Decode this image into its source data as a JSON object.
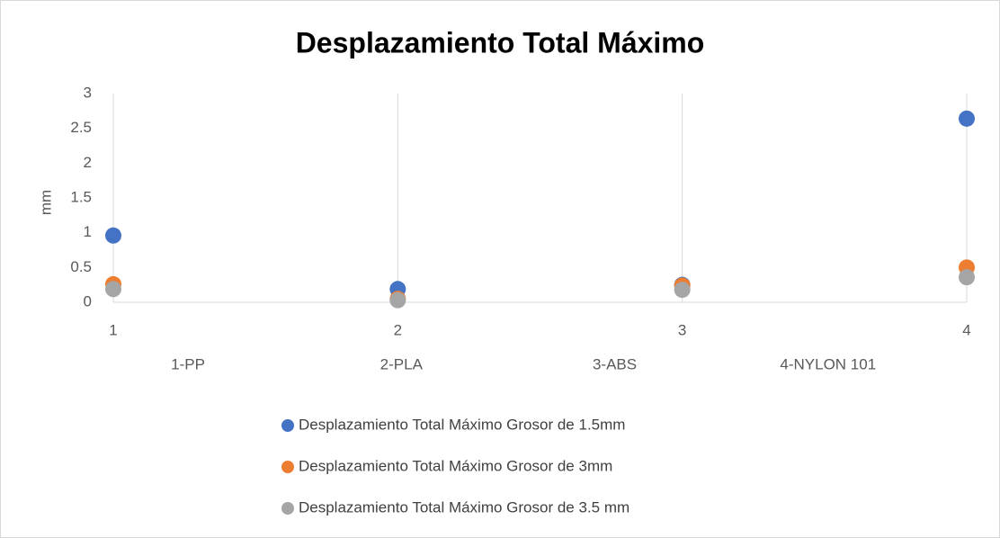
{
  "chart_data": {
    "type": "scatter",
    "title": "Desplazamiento Total Máximo",
    "y_label": "mm",
    "x": [
      1,
      2,
      3,
      4
    ],
    "category_labels": [
      "1-PP",
      "2-PLA",
      "3-ABS",
      "4-NYLON 101"
    ],
    "series": [
      {
        "name": "Desplazamiento Total Máximo Grosor de 1.5mm",
        "color": "#4472c4",
        "values": [
          0.96,
          0.19,
          0.25,
          2.64
        ]
      },
      {
        "name": "Desplazamiento Total Máximo Grosor de 3mm",
        "color": "#ed7d31",
        "values": [
          0.26,
          0.05,
          0.24,
          0.5
        ]
      },
      {
        "name": "Desplazamiento Total Máximo Grosor de 3.5 mm",
        "color": "#a5a5a5",
        "values": [
          0.19,
          0.03,
          0.18,
          0.36
        ]
      }
    ],
    "xlim": [
      1,
      4
    ],
    "xticks": [
      1,
      2,
      3,
      4
    ],
    "ylim": [
      0,
      3
    ],
    "yticks": [
      0,
      0.5,
      1,
      1.5,
      2,
      2.5,
      3
    ],
    "grid": true,
    "legend": "bottom"
  }
}
